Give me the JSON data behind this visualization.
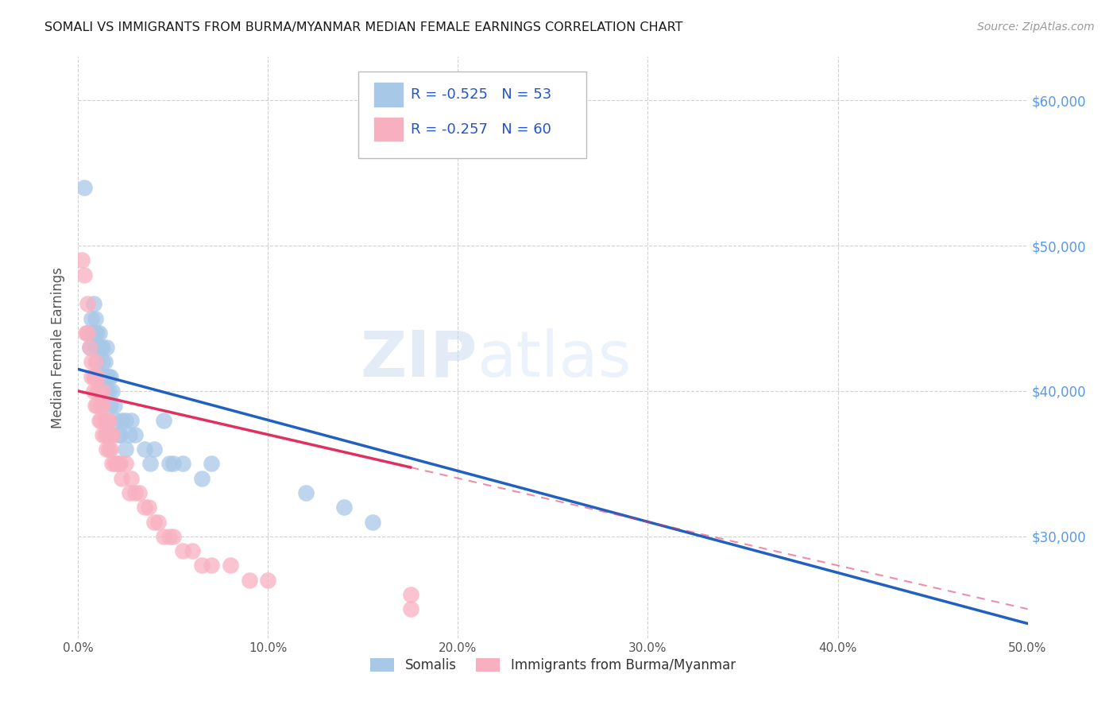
{
  "title": "SOMALI VS IMMIGRANTS FROM BURMA/MYANMAR MEDIAN FEMALE EARNINGS CORRELATION CHART",
  "source": "Source: ZipAtlas.com",
  "ylabel": "Median Female Earnings",
  "legend_label1": "Somalis",
  "legend_label2": "Immigrants from Burma/Myanmar",
  "r1": -0.525,
  "n1": 53,
  "r2": -0.257,
  "n2": 60,
  "color1": "#a8c8e8",
  "color2": "#f8b0c0",
  "line_color1": "#2060c0",
  "line_color2": "#e03060",
  "watermark_zip": "ZIP",
  "watermark_atlas": "atlas",
  "xlim": [
    0.0,
    0.5
  ],
  "ylim": [
    23000,
    63000
  ],
  "yticks": [
    30000,
    40000,
    50000,
    60000
  ],
  "xticks": [
    0.0,
    0.1,
    0.2,
    0.3,
    0.4,
    0.5
  ],
  "xtick_labels": [
    "0.0%",
    "10.0%",
    "20.0%",
    "30.0%",
    "40.0%",
    "50.0%"
  ],
  "ytick_labels": [
    "$30,000",
    "$40,000",
    "$50,000",
    "$60,000"
  ],
  "somali_x": [
    0.003,
    0.005,
    0.006,
    0.007,
    0.007,
    0.008,
    0.008,
    0.009,
    0.009,
    0.009,
    0.01,
    0.01,
    0.01,
    0.011,
    0.011,
    0.011,
    0.012,
    0.012,
    0.013,
    0.013,
    0.013,
    0.014,
    0.014,
    0.015,
    0.015,
    0.015,
    0.016,
    0.016,
    0.017,
    0.017,
    0.018,
    0.019,
    0.02,
    0.021,
    0.022,
    0.023,
    0.025,
    0.025,
    0.027,
    0.028,
    0.03,
    0.035,
    0.038,
    0.04,
    0.045,
    0.048,
    0.05,
    0.055,
    0.065,
    0.07,
    0.12,
    0.14,
    0.155
  ],
  "somali_y": [
    54000,
    44000,
    43000,
    44000,
    45000,
    44000,
    46000,
    43000,
    44000,
    45000,
    42000,
    43000,
    44000,
    41000,
    43000,
    44000,
    41000,
    43000,
    40000,
    42000,
    43000,
    41000,
    42000,
    40000,
    41000,
    43000,
    40000,
    41000,
    39000,
    41000,
    40000,
    39000,
    38000,
    37000,
    37000,
    38000,
    38000,
    36000,
    37000,
    38000,
    37000,
    36000,
    35000,
    36000,
    38000,
    35000,
    35000,
    35000,
    34000,
    35000,
    33000,
    32000,
    31000
  ],
  "burma_x": [
    0.002,
    0.003,
    0.004,
    0.005,
    0.005,
    0.006,
    0.007,
    0.007,
    0.008,
    0.008,
    0.009,
    0.009,
    0.009,
    0.01,
    0.01,
    0.01,
    0.011,
    0.011,
    0.012,
    0.012,
    0.013,
    0.013,
    0.013,
    0.014,
    0.014,
    0.015,
    0.015,
    0.015,
    0.016,
    0.016,
    0.017,
    0.017,
    0.018,
    0.018,
    0.019,
    0.02,
    0.021,
    0.022,
    0.023,
    0.025,
    0.027,
    0.028,
    0.03,
    0.032,
    0.035,
    0.037,
    0.04,
    0.042,
    0.045,
    0.048,
    0.05,
    0.055,
    0.06,
    0.065,
    0.07,
    0.08,
    0.09,
    0.1,
    0.175,
    0.175
  ],
  "burma_y": [
    49000,
    48000,
    44000,
    46000,
    44000,
    43000,
    41000,
    42000,
    40000,
    41000,
    39000,
    41000,
    42000,
    39000,
    40000,
    41000,
    38000,
    40000,
    38000,
    39000,
    37000,
    39000,
    40000,
    37000,
    38000,
    36000,
    37000,
    38000,
    36000,
    38000,
    36000,
    37000,
    35000,
    37000,
    35000,
    35000,
    35000,
    35000,
    34000,
    35000,
    33000,
    34000,
    33000,
    33000,
    32000,
    32000,
    31000,
    31000,
    30000,
    30000,
    30000,
    29000,
    29000,
    28000,
    28000,
    28000,
    27000,
    27000,
    26000,
    25000
  ],
  "trend1_x0": 0.0,
  "trend1_y0": 41500,
  "trend1_x1": 0.5,
  "trend1_y1": 24000,
  "trend2_x0": 0.0,
  "trend2_y0": 40000,
  "trend2_x1": 0.5,
  "trend2_y1": 25000,
  "trend2_solid_end": 0.175
}
